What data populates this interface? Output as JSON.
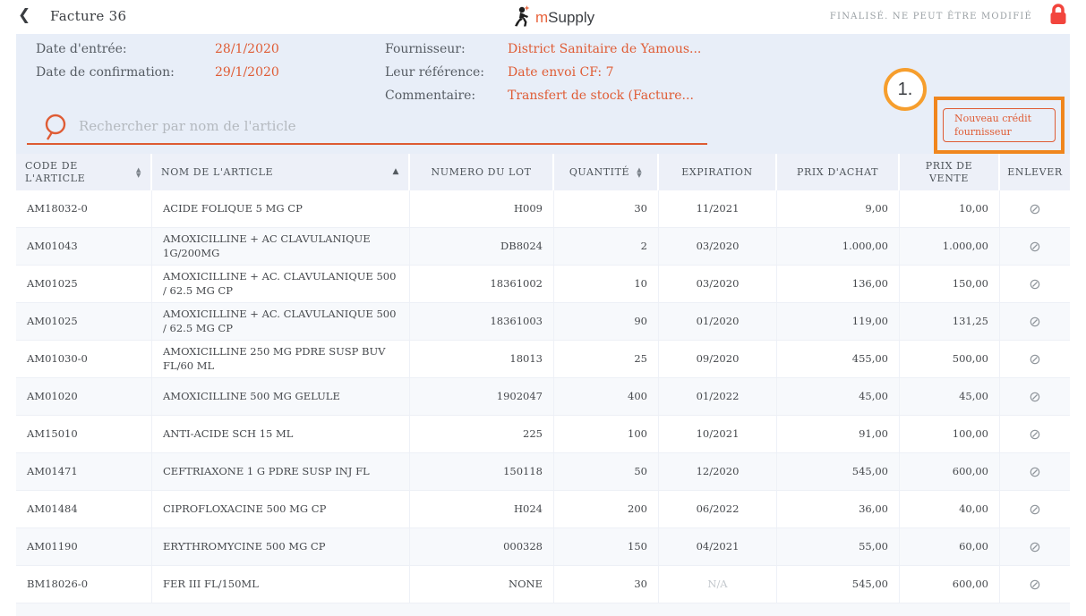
{
  "header": {
    "back_icon": "chevron-left",
    "title": "Facture 36",
    "logo_m": "m",
    "logo_rest": "Supply",
    "status": "FINALISÉ. NE PEUT ÊTRE MODIFIÉ",
    "lock_icon": "red-lock"
  },
  "info": {
    "left": [
      {
        "label": "Date d'entrée:",
        "value": "28/1/2020"
      },
      {
        "label": "Date de confirmation:",
        "value": "29/1/2020"
      }
    ],
    "right": [
      {
        "label": "Fournisseur:",
        "value": "District Sanitaire de Yamous..."
      },
      {
        "label": "Leur référence:",
        "value": "Date envoi CF: 7"
      },
      {
        "label": "Commentaire:",
        "value": "Transfert de stock (Facture..."
      }
    ]
  },
  "search": {
    "placeholder": "Rechercher par nom de l'article",
    "icon": "search-icon"
  },
  "actions": {
    "new_credit_label": "Nouveau crédit fournisseur"
  },
  "annotation": {
    "step": "1."
  },
  "colors": {
    "accent_orange": "#df5c35",
    "highlight_orange": "#f0861d",
    "panel_blue": "#e8eef8",
    "lock_red": "#f2453d"
  },
  "table": {
    "columns": [
      {
        "key": "code",
        "label": "CODE DE L'ARTICLE",
        "sort": "both",
        "align": "al",
        "cls": "c-code"
      },
      {
        "key": "name",
        "label": "NOM DE L'ARTICLE",
        "sort": "asc",
        "align": "al",
        "cls": "c-name"
      },
      {
        "key": "lot",
        "label": "NUMERO DU LOT",
        "sort": null,
        "align": "ar",
        "cls": "c-lot"
      },
      {
        "key": "qty",
        "label": "QUANTITÉ",
        "sort": "both",
        "align": "ar",
        "cls": "c-qty"
      },
      {
        "key": "expiry",
        "label": "EXPIRATION",
        "sort": null,
        "align": "ac",
        "cls": "c-exp"
      },
      {
        "key": "cost",
        "label": "PRIX D'ACHAT",
        "sort": null,
        "align": "ar",
        "cls": "c-cost"
      },
      {
        "key": "sell",
        "label": "PRIX DE VENTE",
        "sort": null,
        "align": "ar",
        "cls": "c-sell"
      },
      {
        "key": "remove",
        "label": "ENLEVER",
        "sort": null,
        "align": "ac",
        "cls": "c-remove"
      }
    ],
    "remove_icon": "⊘",
    "rows": [
      {
        "code": "AM18032-0",
        "name": "ACIDE FOLIQUE 5 MG CP",
        "lot": "H009",
        "qty": "30",
        "expiry": "11/2021",
        "cost": "9,00",
        "sell": "10,00"
      },
      {
        "code": "AM01043",
        "name": "AMOXICILLINE + AC CLAVULANIQUE 1G/200MG",
        "lot": "DB8024",
        "qty": "2",
        "expiry": "03/2020",
        "cost": "1.000,00",
        "sell": "1.000,00"
      },
      {
        "code": "AM01025",
        "name": "AMOXICILLINE + AC. CLAVULANIQUE 500 / 62.5 MG CP",
        "lot": "18361002",
        "qty": "10",
        "expiry": "03/2020",
        "cost": "136,00",
        "sell": "150,00"
      },
      {
        "code": "AM01025",
        "name": "AMOXICILLINE + AC. CLAVULANIQUE 500 / 62.5 MG CP",
        "lot": "18361003",
        "qty": "90",
        "expiry": "01/2020",
        "cost": "119,00",
        "sell": "131,25"
      },
      {
        "code": "AM01030-0",
        "name": "AMOXICILLINE 250 MG PDRE SUSP BUV FL/60 ML",
        "lot": "18013",
        "qty": "25",
        "expiry": "09/2020",
        "cost": "455,00",
        "sell": "500,00"
      },
      {
        "code": "AM01020",
        "name": "AMOXICILLINE 500 MG GELULE",
        "lot": "1902047",
        "qty": "400",
        "expiry": "01/2022",
        "cost": "45,00",
        "sell": "45,00"
      },
      {
        "code": "AM15010",
        "name": "ANTI-ACIDE SCH 15 ML",
        "lot": "225",
        "qty": "100",
        "expiry": "10/2021",
        "cost": "91,00",
        "sell": "100,00"
      },
      {
        "code": "AM01471",
        "name": "CEFTRIAXONE 1 G PDRE SUSP INJ FL",
        "lot": "150118",
        "qty": "50",
        "expiry": "12/2020",
        "cost": "545,00",
        "sell": "600,00"
      },
      {
        "code": "AM01484",
        "name": "CIPROFLOXACINE 500 MG CP",
        "lot": "H024",
        "qty": "200",
        "expiry": "06/2022",
        "cost": "36,00",
        "sell": "40,00"
      },
      {
        "code": "AM01190",
        "name": "ERYTHROMYCINE 500 MG CP",
        "lot": "000328",
        "qty": "150",
        "expiry": "04/2021",
        "cost": "55,00",
        "sell": "60,00"
      },
      {
        "code": "BM18026-0",
        "name": "FER III FL/150ML",
        "lot": "NONE",
        "qty": "30",
        "expiry": "N/A",
        "cost": "545,00",
        "sell": "600,00"
      }
    ]
  }
}
